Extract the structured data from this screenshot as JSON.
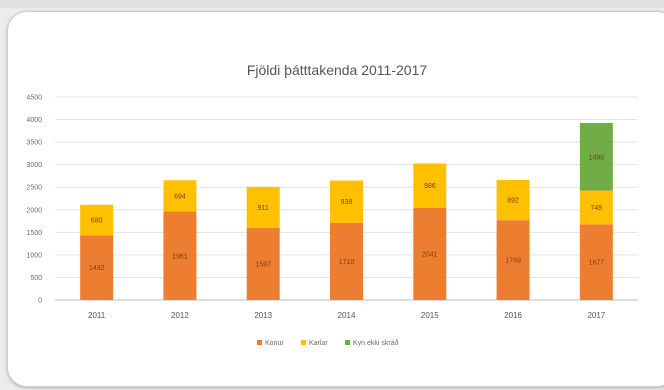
{
  "chart_data": {
    "type": "bar",
    "stacked": true,
    "title": "Fjöldi þátttakenda 2011-2017",
    "xlabel": "",
    "ylabel": "",
    "categories": [
      "2011",
      "2012",
      "2013",
      "2014",
      "2015",
      "2016",
      "2017"
    ],
    "series": [
      {
        "name": "Konur",
        "color": "#ed7d31",
        "values": [
          1432,
          1961,
          1597,
          1710,
          2041,
          1769,
          1677
        ]
      },
      {
        "name": "Karlar",
        "color": "#ffc000",
        "values": [
          680,
          694,
          911,
          938,
          986,
          892,
          749
        ]
      },
      {
        "name": "Kyn ekki skráð",
        "color": "#70ad47",
        "values": [
          null,
          null,
          null,
          null,
          null,
          null,
          1498
        ]
      }
    ],
    "ylim": [
      0,
      4500
    ],
    "yticks": [
      0,
      500,
      1000,
      1500,
      2000,
      2500,
      3000,
      3500,
      4000,
      4500
    ],
    "grid": true,
    "legend_position": "bottom"
  }
}
